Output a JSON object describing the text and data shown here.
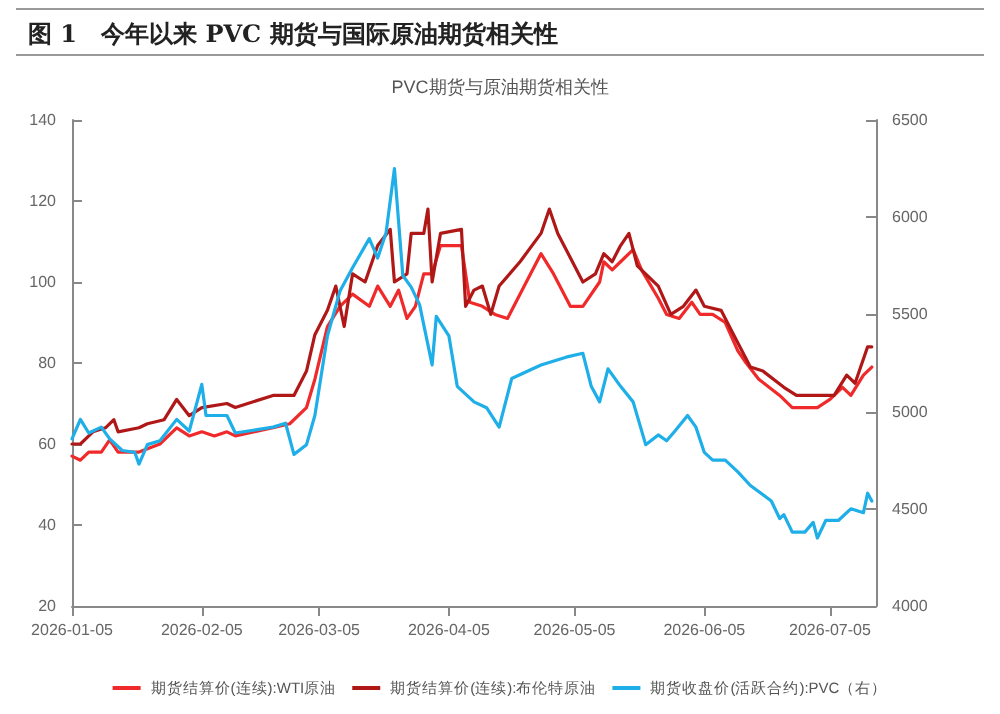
{
  "chart_data": {
    "type": "line",
    "title": "图 1　今年以来 PVC 期货与国际原油期货相关性",
    "subtitle": "PVC期货与原油期货相关性",
    "xlim": [
      "2026-01-05",
      "2026-07-16"
    ],
    "xticks": [
      "2026-01-05",
      "2026-02-05",
      "2026-03-05",
      "2026-04-05",
      "2026-05-05",
      "2026-06-05",
      "2026-07-05"
    ],
    "ylim": [
      20,
      140
    ],
    "yticks": [
      20,
      40,
      60,
      80,
      100,
      120,
      140
    ],
    "y2lim": [
      4000,
      6500
    ],
    "y2ticks": [
      4000,
      4500,
      5000,
      5500,
      6000,
      6500
    ],
    "grid": false,
    "legend": "bottom",
    "marker": "none",
    "line_style": "solid",
    "series": [
      {
        "name": "期货结算价(连续):WTI原油",
        "color": "#f02a2a",
        "x": [
          "2026-01-05",
          "2026-01-07",
          "2026-01-09",
          "2026-01-12",
          "2026-01-14",
          "2026-01-16",
          "2026-01-21",
          "2026-01-26",
          "2026-01-30",
          "2026-02-02",
          "2026-02-05",
          "2026-02-08",
          "2026-02-11",
          "2026-02-13",
          "2026-02-22",
          "2026-02-26",
          "2026-03-02",
          "2026-03-04",
          "2026-03-07",
          "2026-03-10",
          "2026-03-13",
          "2026-03-17",
          "2026-03-19",
          "2026-03-22",
          "2026-03-24",
          "2026-03-26",
          "2026-03-28",
          "2026-03-30",
          "2026-04-01",
          "2026-04-03",
          "2026-04-05",
          "2026-04-08",
          "2026-04-10",
          "2026-04-13",
          "2026-04-16",
          "2026-04-19",
          "2026-04-23",
          "2026-04-27",
          "2026-04-30",
          "2026-05-04",
          "2026-05-07",
          "2026-05-11",
          "2026-05-12",
          "2026-05-14",
          "2026-05-16",
          "2026-05-19",
          "2026-05-21",
          "2026-05-25",
          "2026-05-27",
          "2026-05-30",
          "2026-06-02",
          "2026-06-04",
          "2026-06-07",
          "2026-06-10",
          "2026-06-13",
          "2026-06-15",
          "2026-06-18",
          "2026-06-23",
          "2026-06-26",
          "2026-07-02",
          "2026-07-05",
          "2026-07-08",
          "2026-07-10",
          "2026-07-13",
          "2026-07-15"
        ],
        "values": [
          57,
          56,
          58,
          58,
          61,
          58,
          58,
          60,
          64,
          62,
          63,
          62,
          63,
          62,
          64,
          65,
          69,
          76,
          89,
          94,
          97,
          94,
          99,
          94,
          98,
          91,
          94,
          102,
          102,
          109,
          109,
          109,
          95,
          94,
          92,
          91,
          99,
          107,
          102,
          94,
          94,
          100,
          105,
          103,
          105,
          108,
          103,
          96,
          92,
          91,
          95,
          92,
          92,
          90,
          83,
          80,
          76,
          72,
          69,
          69,
          71,
          74,
          72,
          77,
          79
        ]
      },
      {
        "name": "期货结算价(连续):布伦特原油",
        "color": "#b01818",
        "x": [
          "2026-01-05",
          "2026-01-07",
          "2026-01-10",
          "2026-01-13",
          "2026-01-15",
          "2026-01-16",
          "2026-01-21",
          "2026-01-23",
          "2026-01-27",
          "2026-01-30",
          "2026-02-02",
          "2026-02-05",
          "2026-02-11",
          "2026-02-13",
          "2026-02-22",
          "2026-02-27",
          "2026-03-02",
          "2026-03-04",
          "2026-03-07",
          "2026-03-09",
          "2026-03-11",
          "2026-03-13",
          "2026-03-16",
          "2026-03-19",
          "2026-03-22",
          "2026-03-23",
          "2026-03-26",
          "2026-03-27",
          "2026-03-30",
          "2026-03-31",
          "2026-04-01",
          "2026-04-03",
          "2026-04-08",
          "2026-04-09",
          "2026-04-11",
          "2026-04-13",
          "2026-04-15",
          "2026-04-17",
          "2026-04-22",
          "2026-04-27",
          "2026-04-29",
          "2026-05-01",
          "2026-05-07",
          "2026-05-10",
          "2026-05-12",
          "2026-05-14",
          "2026-05-16",
          "2026-05-18",
          "2026-05-20",
          "2026-05-25",
          "2026-05-28",
          "2026-05-31",
          "2026-06-03",
          "2026-06-05",
          "2026-06-09",
          "2026-06-12",
          "2026-06-16",
          "2026-06-19",
          "2026-06-24",
          "2026-06-27",
          "2026-07-02",
          "2026-07-06",
          "2026-07-09",
          "2026-07-11",
          "2026-07-14",
          "2026-07-15"
        ],
        "values": [
          60,
          60,
          63,
          64,
          66,
          63,
          64,
          65,
          66,
          71,
          67,
          69,
          70,
          69,
          72,
          72,
          78,
          87,
          93,
          99,
          89,
          102,
          100,
          109,
          113,
          100,
          102,
          112,
          112,
          118,
          100,
          112,
          113,
          94,
          98,
          99,
          92,
          99,
          105,
          112,
          118,
          112,
          100,
          102,
          107,
          105,
          109,
          112,
          104,
          99,
          92,
          94,
          98,
          94,
          93,
          87,
          79,
          78,
          74,
          72,
          72,
          72,
          77,
          75,
          84,
          84
        ]
      },
      {
        "name": "期货收盘价(活跃合约):PVC（右）",
        "color": "#1eaee8",
        "axis": "y2",
        "x": [
          "2026-01-05",
          "2026-01-07",
          "2026-01-09",
          "2026-01-12",
          "2026-01-14",
          "2026-01-17",
          "2026-01-20",
          "2026-01-21",
          "2026-01-23",
          "2026-01-26",
          "2026-01-30",
          "2026-02-02",
          "2026-02-05",
          "2026-02-06",
          "2026-02-11",
          "2026-02-13",
          "2026-02-22",
          "2026-02-25",
          "2026-02-27",
          "2026-03-02",
          "2026-03-04",
          "2026-03-07",
          "2026-03-10",
          "2026-03-13",
          "2026-03-17",
          "2026-03-19",
          "2026-03-21",
          "2026-03-23",
          "2026-03-25",
          "2026-03-27",
          "2026-03-29",
          "2026-04-01",
          "2026-04-02",
          "2026-04-05",
          "2026-04-07",
          "2026-04-11",
          "2026-04-14",
          "2026-04-17",
          "2026-04-20",
          "2026-04-27",
          "2026-05-03",
          "2026-05-07",
          "2026-05-09",
          "2026-05-11",
          "2026-05-13",
          "2026-05-16",
          "2026-05-19",
          "2026-05-22",
          "2026-05-25",
          "2026-05-27",
          "2026-05-29",
          "2026-06-01",
          "2026-06-03",
          "2026-06-05",
          "2026-06-07",
          "2026-06-10",
          "2026-06-13",
          "2026-06-16",
          "2026-06-21",
          "2026-06-23",
          "2026-06-24",
          "2026-06-26",
          "2026-06-29",
          "2026-07-01",
          "2026-07-02",
          "2026-07-04",
          "2026-07-07",
          "2026-07-10",
          "2026-07-13",
          "2026-07-14",
          "2026-07-15"
        ],
        "values": [
          4860,
          4960,
          4890,
          4920,
          4860,
          4800,
          4790,
          4730,
          4830,
          4850,
          4960,
          4900,
          5140,
          4980,
          4980,
          4890,
          4920,
          4940,
          4780,
          4830,
          4980,
          5390,
          5620,
          5740,
          5890,
          5790,
          5920,
          6250,
          5700,
          5640,
          5550,
          5240,
          5490,
          5390,
          5130,
          5050,
          5020,
          4920,
          5170,
          5240,
          5280,
          5300,
          5130,
          5050,
          5220,
          5130,
          5050,
          4830,
          4880,
          4850,
          4900,
          4980,
          4920,
          4790,
          4750,
          4750,
          4690,
          4620,
          4540,
          4450,
          4470,
          4380,
          4380,
          4430,
          4350,
          4440,
          4440,
          4500,
          4480,
          4580,
          4540
        ]
      }
    ]
  }
}
